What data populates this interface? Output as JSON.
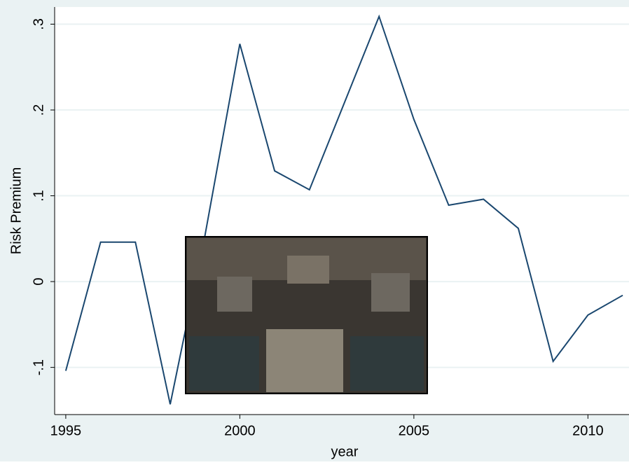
{
  "chart_data": {
    "type": "line",
    "x_label": "year",
    "y_label": "Risk Premium",
    "x": [
      1995,
      1996,
      1997,
      1998,
      1999,
      2000,
      2001,
      2002,
      2003,
      2004,
      2005,
      2006,
      2007,
      2008,
      2009,
      2010,
      2011
    ],
    "series": [
      {
        "name": "Risk Premium",
        "color": "#1a476f",
        "values": [
          -0.104,
          0.046,
          0.046,
          -0.143,
          0.054,
          0.277,
          0.129,
          0.107,
          0.208,
          0.309,
          0.189,
          0.089,
          0.096,
          0.062,
          -0.093,
          -0.039,
          -0.016
        ]
      }
    ],
    "xlim": [
      1994.68,
      2011.18
    ],
    "xticks": [
      1995,
      2000,
      2005,
      2010
    ],
    "ylim": [
      -0.155,
      0.32
    ],
    "yticks": [
      {
        "value": -0.1,
        "label": "-.1"
      },
      0,
      {
        "value": 0.1,
        "label": ".1"
      },
      {
        "value": 0.2,
        "label": ".2"
      },
      {
        "value": 0.3,
        "label": ".3"
      }
    ],
    "grid": true
  }
}
